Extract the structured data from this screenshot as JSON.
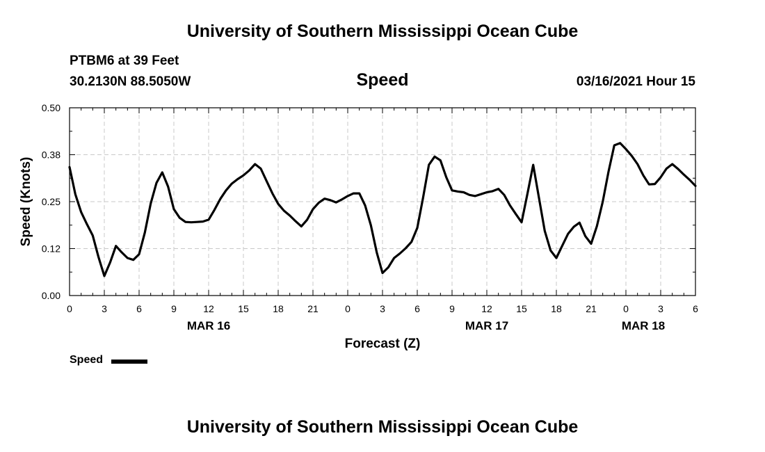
{
  "header": {
    "title_top": "University of Southern Mississippi Ocean Cube",
    "title_bottom": "University of Southern Mississippi Ocean Cube",
    "station": "PTBM6 at 39 Feet",
    "location": "30.2130N 88.5050W",
    "variable": "Speed",
    "timestamp": "03/16/2021 Hour 15"
  },
  "chart_data": {
    "type": "line",
    "xlabel": "Forecast (Z)",
    "ylabel": "Speed (Knots)",
    "xlim": [
      0,
      54
    ],
    "ylim": [
      0,
      0.5
    ],
    "x_tick_labels": [
      "0",
      "3",
      "6",
      "9",
      "12",
      "15",
      "18",
      "21",
      "0",
      "3",
      "6",
      "9",
      "12",
      "15",
      "18",
      "21",
      "0",
      "3",
      "6"
    ],
    "y_tick_labels": [
      "0.00",
      "0.12",
      "0.25",
      "0.38",
      "0.50"
    ],
    "date_labels": [
      {
        "label": "MAR 16",
        "x": 12
      },
      {
        "label": "MAR 17",
        "x": 36
      },
      {
        "label": "MAR 18",
        "x": 49.5
      }
    ],
    "grid": true,
    "legend": {
      "label": "Speed",
      "placement": "bottom-left"
    },
    "series": [
      {
        "name": "Speed",
        "color": "#000000",
        "x": [
          0,
          0.5,
          1,
          1.5,
          2,
          2.5,
          3,
          3.5,
          4,
          4.5,
          5,
          5.5,
          6,
          6.5,
          7,
          7.5,
          8,
          8.5,
          9,
          9.5,
          10,
          10.5,
          11,
          11.5,
          12,
          12.5,
          13,
          13.5,
          14,
          14.5,
          15,
          15.5,
          16,
          16.5,
          17,
          17.5,
          18,
          18.5,
          19,
          19.5,
          20,
          20.5,
          21,
          21.5,
          22,
          22.5,
          23,
          23.5,
          24,
          24.5,
          25,
          25.5,
          26,
          26.5,
          27,
          27.5,
          28,
          28.5,
          29,
          29.5,
          30,
          30.5,
          31,
          31.5,
          32,
          32.5,
          33,
          33.5,
          34,
          34.5,
          35,
          35.5,
          36,
          36.5,
          37,
          37.5,
          38,
          38.5,
          39,
          39.5,
          40,
          40.5,
          41,
          41.5,
          42,
          42.5,
          43,
          43.5,
          44,
          44.5,
          45,
          45.5,
          46,
          46.5,
          47,
          47.5,
          48,
          48.5,
          49,
          49.5,
          50,
          50.5,
          51,
          51.5,
          52,
          52.5,
          53,
          53.5,
          54
        ],
        "values": [
          0.342,
          0.27,
          0.222,
          0.19,
          0.16,
          0.102,
          0.052,
          0.088,
          0.132,
          0.115,
          0.1,
          0.095,
          0.11,
          0.168,
          0.245,
          0.3,
          0.328,
          0.29,
          0.23,
          0.207,
          0.196,
          0.195,
          0.196,
          0.197,
          0.202,
          0.228,
          0.257,
          0.28,
          0.298,
          0.31,
          0.32,
          0.333,
          0.35,
          0.338,
          0.305,
          0.272,
          0.244,
          0.226,
          0.213,
          0.198,
          0.184,
          0.202,
          0.23,
          0.247,
          0.258,
          0.254,
          0.248,
          0.256,
          0.265,
          0.272,
          0.272,
          0.24,
          0.187,
          0.115,
          0.06,
          0.075,
          0.1,
          0.112,
          0.126,
          0.143,
          0.18,
          0.26,
          0.348,
          0.37,
          0.36,
          0.315,
          0.28,
          0.277,
          0.275,
          0.268,
          0.265,
          0.27,
          0.275,
          0.278,
          0.284,
          0.268,
          0.24,
          0.217,
          0.195,
          0.27,
          0.348,
          0.26,
          0.172,
          0.12,
          0.1,
          0.132,
          0.164,
          0.183,
          0.194,
          0.158,
          0.138,
          0.185,
          0.25,
          0.33,
          0.4,
          0.406,
          0.39,
          0.372,
          0.35,
          0.32,
          0.296,
          0.297,
          0.315,
          0.338,
          0.35,
          0.337,
          0.322,
          0.308,
          0.292
        ]
      }
    ]
  }
}
